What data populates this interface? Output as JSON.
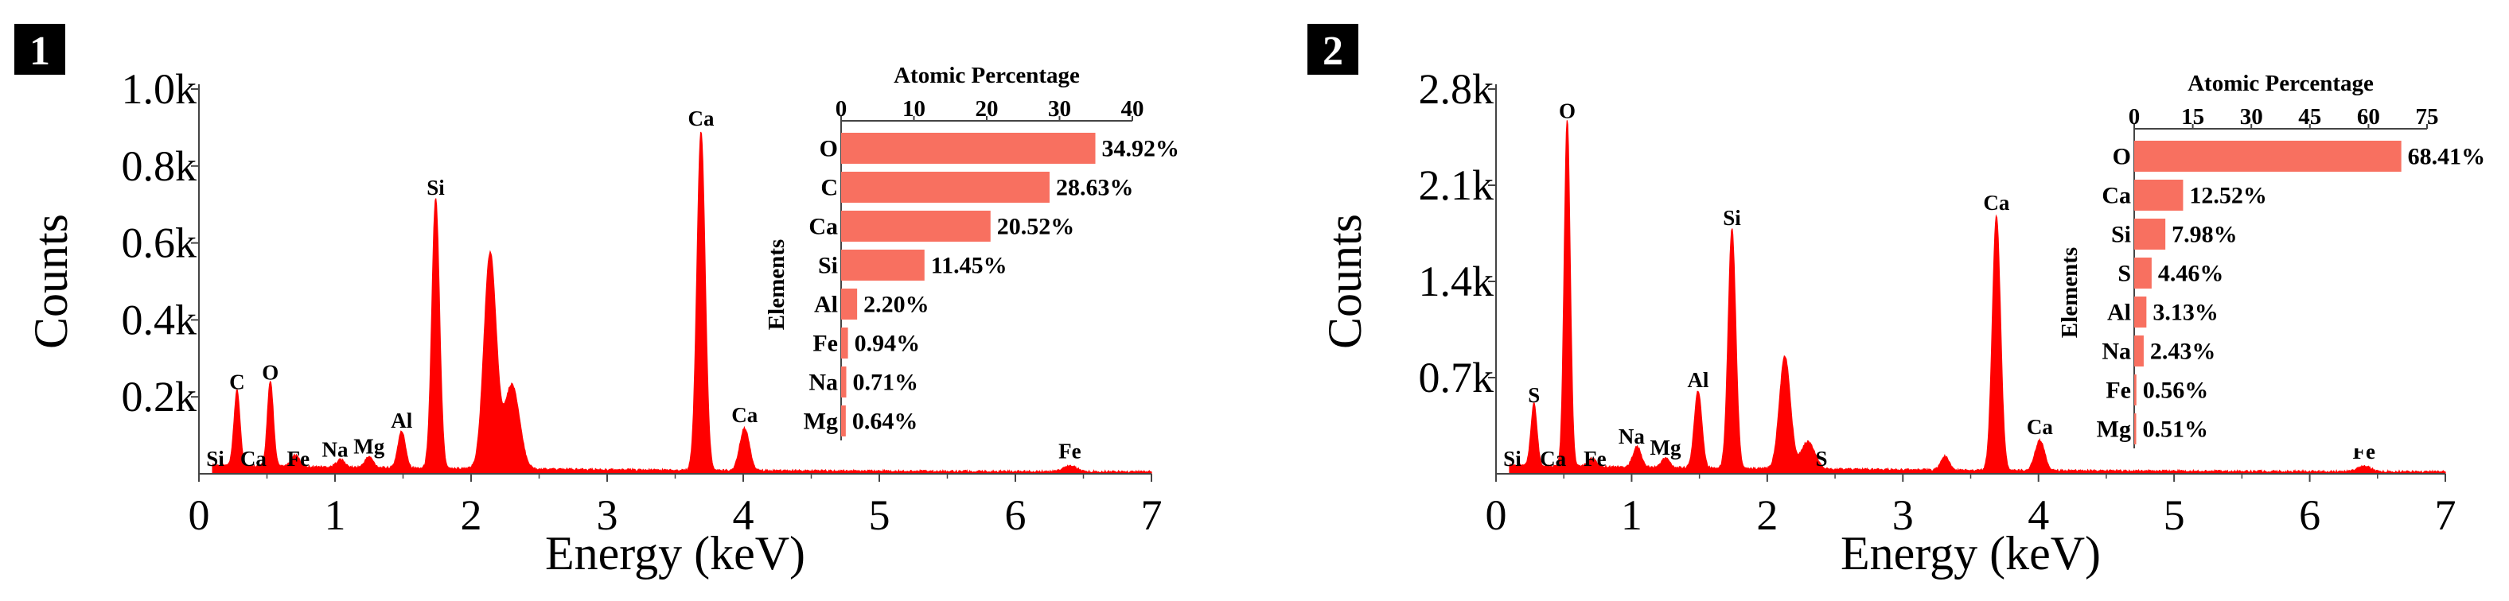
{
  "colors": {
    "spectrum": "#ff0000",
    "bar": "#f87060",
    "axis": "#444444",
    "text": "#000000",
    "badge_bg": "#000000",
    "badge_text": "#ffffff"
  },
  "chart_data": [
    {
      "type": "area",
      "panel_label": "1",
      "xlabel": "Energy (keV)",
      "ylabel": "Counts",
      "xlim": [
        0,
        7
      ],
      "ylim": [
        0,
        1000
      ],
      "x_ticks": [
        "0",
        "1",
        "2",
        "3",
        "4",
        "5",
        "6",
        "7"
      ],
      "y_ticks": [
        "0.2k",
        "0.4k",
        "0.6k",
        "0.8k",
        "1.0k"
      ],
      "peaks": [
        {
          "x": 0.28,
          "y": 195,
          "w": 0.022
        },
        {
          "x": 0.525,
          "y": 220,
          "w": 0.022
        },
        {
          "x": 0.71,
          "y": 30,
          "w": 0.03
        },
        {
          "x": 1.04,
          "y": 20,
          "w": 0.03
        },
        {
          "x": 1.25,
          "y": 28,
          "w": 0.03
        },
        {
          "x": 1.49,
          "y": 95,
          "w": 0.028
        },
        {
          "x": 1.74,
          "y": 700,
          "w": 0.028
        },
        {
          "x": 2.14,
          "y": 560,
          "w": 0.045
        },
        {
          "x": 2.3,
          "y": 220,
          "w": 0.055
        },
        {
          "x": 3.69,
          "y": 880,
          "w": 0.03
        },
        {
          "x": 4.01,
          "y": 110,
          "w": 0.035
        },
        {
          "x": 6.4,
          "y": 15,
          "w": 0.05
        }
      ],
      "spectrum_labels": [
        {
          "text": "Si",
          "x": 0.12,
          "y": 0
        },
        {
          "text": "C",
          "x": 0.28,
          "y": 195
        },
        {
          "text": "Ca",
          "x": 0.4,
          "y": 0
        },
        {
          "text": "O",
          "x": 0.525,
          "y": 220
        },
        {
          "text": "Fe",
          "x": 0.73,
          "y": 0
        },
        {
          "text": "Na",
          "x": 1.0,
          "y": 20
        },
        {
          "text": "Mg",
          "x": 1.25,
          "y": 28
        },
        {
          "text": "Al",
          "x": 1.49,
          "y": 95
        },
        {
          "text": "Si",
          "x": 1.74,
          "y": 700
        },
        {
          "text": "Ca",
          "x": 3.69,
          "y": 880
        },
        {
          "text": "Ca",
          "x": 4.01,
          "y": 110
        },
        {
          "text": "Fe",
          "x": 6.4,
          "y": 15
        }
      ],
      "inset": {
        "type": "bar",
        "title": "Atomic Percentage",
        "ylabel": "Elements",
        "xlim": [
          0,
          40
        ],
        "x_ticks": [
          "0",
          "10",
          "20",
          "30",
          "40"
        ],
        "categories": [
          "O",
          "C",
          "Ca",
          "Si",
          "Al",
          "Fe",
          "Na",
          "Mg"
        ],
        "values": [
          34.92,
          28.63,
          20.52,
          11.45,
          2.2,
          0.94,
          0.71,
          0.64
        ],
        "value_labels": [
          "34.92%",
          "28.63%",
          "20.52%",
          "11.45%",
          "2.20%",
          "0.94%",
          "0.71%",
          "0.64%"
        ]
      }
    },
    {
      "type": "area",
      "panel_label": "2",
      "xlabel": "Energy (keV)",
      "ylabel": "Counts",
      "xlim": [
        0,
        7
      ],
      "ylim": [
        0,
        2800
      ],
      "x_ticks": [
        "0",
        "1",
        "2",
        "3",
        "4",
        "5",
        "6",
        "7"
      ],
      "y_ticks": [
        "0.7k",
        "1.4k",
        "2.1k",
        "2.8k"
      ],
      "peaks": [
        {
          "x": 0.28,
          "y": 450,
          "w": 0.022
        },
        {
          "x": 0.525,
          "y": 2520,
          "w": 0.022
        },
        {
          "x": 0.71,
          "y": 60,
          "w": 0.03
        },
        {
          "x": 1.04,
          "y": 150,
          "w": 0.03
        },
        {
          "x": 1.25,
          "y": 70,
          "w": 0.03
        },
        {
          "x": 1.49,
          "y": 560,
          "w": 0.028
        },
        {
          "x": 1.74,
          "y": 1740,
          "w": 0.028
        },
        {
          "x": 2.13,
          "y": 820,
          "w": 0.04
        },
        {
          "x": 2.3,
          "y": 200,
          "w": 0.05
        },
        {
          "x": 3.31,
          "y": 100,
          "w": 0.03
        },
        {
          "x": 3.69,
          "y": 1850,
          "w": 0.03
        },
        {
          "x": 4.01,
          "y": 220,
          "w": 0.035
        },
        {
          "x": 6.4,
          "y": 40,
          "w": 0.05
        }
      ],
      "spectrum_labels": [
        {
          "text": "Si",
          "x": 0.12,
          "y": 0
        },
        {
          "text": "S",
          "x": 0.28,
          "y": 450
        },
        {
          "text": "Ca",
          "x": 0.42,
          "y": 0
        },
        {
          "text": "O",
          "x": 0.525,
          "y": 2520
        },
        {
          "text": "Fe",
          "x": 0.73,
          "y": 0
        },
        {
          "text": "Na",
          "x": 1.0,
          "y": 150
        },
        {
          "text": "Mg",
          "x": 1.25,
          "y": 70
        },
        {
          "text": "Al",
          "x": 1.49,
          "y": 560
        },
        {
          "text": "Si",
          "x": 1.74,
          "y": 1740
        },
        {
          "text": "S",
          "x": 2.4,
          "y": 0
        },
        {
          "text": "Ca",
          "x": 3.69,
          "y": 1850
        },
        {
          "text": "Ca",
          "x": 4.01,
          "y": 220
        },
        {
          "text": "Fe",
          "x": 6.4,
          "y": 40
        }
      ],
      "inset": {
        "type": "bar",
        "title": "Atomic Percentage",
        "ylabel": "Elements",
        "xlim": [
          0,
          75
        ],
        "x_ticks": [
          "0",
          "15",
          "30",
          "45",
          "60",
          "75"
        ],
        "categories": [
          "O",
          "Ca",
          "Si",
          "S",
          "Al",
          "Na",
          "Fe",
          "Mg"
        ],
        "values": [
          68.41,
          12.52,
          7.98,
          4.46,
          3.13,
          2.43,
          0.56,
          0.51
        ],
        "value_labels": [
          "68.41%",
          "12.52%",
          "7.98%",
          "4.46%",
          "3.13%",
          "2.43%",
          "0.56%",
          "0.51%"
        ]
      }
    }
  ]
}
